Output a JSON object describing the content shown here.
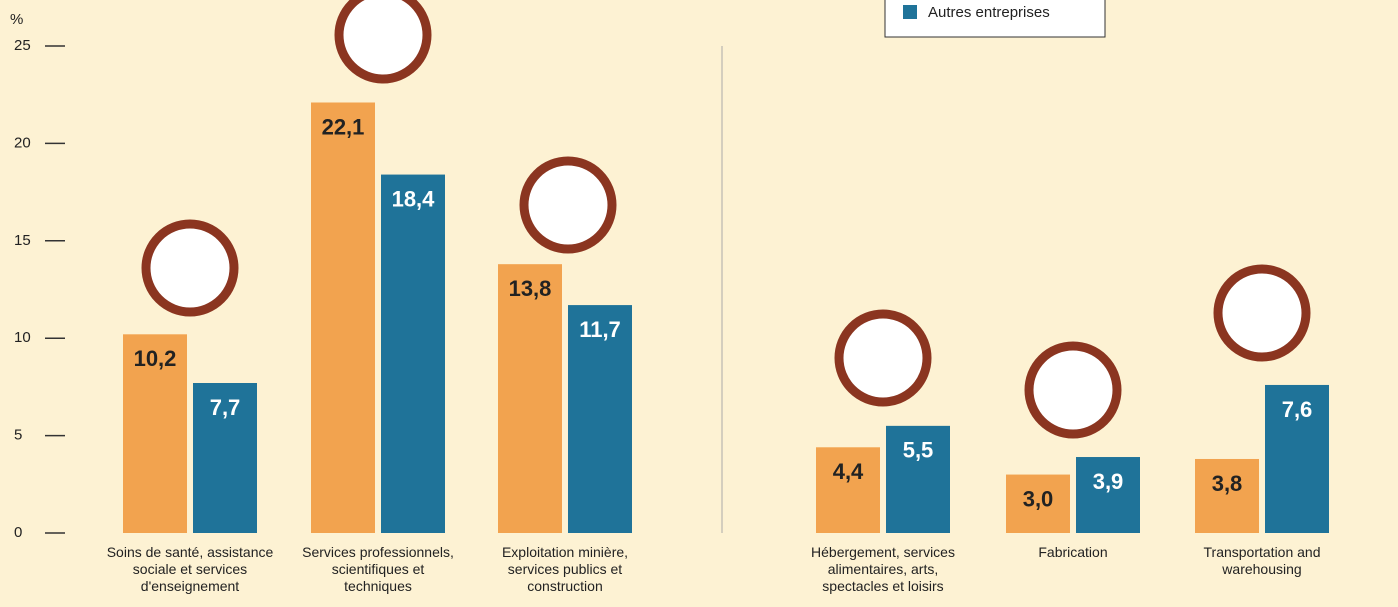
{
  "chart_data": {
    "type": "bar",
    "y_label": "%",
    "categories": [
      "Soins de santé, assistance\nsociale et services\nd'enseignement",
      "Services professionnels,\nscientifiques et\ntechniques",
      "Exploitation minière,\nservices publics et\nconstruction",
      "Hébergement, services\nalimentaires, arts,\nspectacles et loisirs",
      "Fabrication",
      "Transportation and\nwarehousing"
    ],
    "series": [
      {
        "color": "#f2a34f",
        "values": [
          10.2,
          22.1,
          13.8,
          4.4,
          3.0,
          3.8
        ],
        "value_labels": [
          "10,2",
          "22,1",
          "13,8",
          "4,4",
          "3,0",
          "3,8"
        ]
      },
      {
        "name": "Autres entreprises",
        "color": "#1f7399",
        "values": [
          7.7,
          18.4,
          11.7,
          5.5,
          3.9,
          7.6
        ],
        "value_labels": [
          "7,7",
          "18,4",
          "11,7",
          "5,5",
          "3,9",
          "7,6"
        ]
      }
    ],
    "ylim": [
      0,
      25
    ],
    "yticks": [
      0,
      5,
      10,
      15,
      20,
      25
    ]
  }
}
